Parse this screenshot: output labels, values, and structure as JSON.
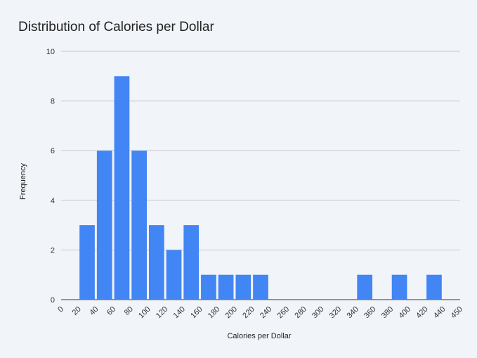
{
  "chart_data": {
    "type": "bar",
    "title": "Distribution of Calories per Dollar",
    "xlabel": "Calories per Dollar",
    "ylabel": "Frequency",
    "ylim": [
      0,
      10
    ],
    "y_ticks": [
      "0",
      "2",
      "4",
      "6",
      "8",
      "10"
    ],
    "x_ticks": [
      "0",
      "20",
      "40",
      "60",
      "80",
      "100",
      "120",
      "140",
      "160",
      "180",
      "200",
      "220",
      "240",
      "260",
      "280",
      "300",
      "320",
      "340",
      "360",
      "380",
      "400",
      "420",
      "440",
      "450"
    ],
    "bins": [
      {
        "x_start": 20,
        "x_end": 40,
        "value": 3
      },
      {
        "x_start": 40,
        "x_end": 60,
        "value": 6
      },
      {
        "x_start": 60,
        "x_end": 80,
        "value": 9
      },
      {
        "x_start": 80,
        "x_end": 100,
        "value": 6
      },
      {
        "x_start": 100,
        "x_end": 120,
        "value": 3
      },
      {
        "x_start": 120,
        "x_end": 140,
        "value": 2
      },
      {
        "x_start": 140,
        "x_end": 160,
        "value": 3
      },
      {
        "x_start": 160,
        "x_end": 180,
        "value": 1
      },
      {
        "x_start": 180,
        "x_end": 200,
        "value": 1
      },
      {
        "x_start": 200,
        "x_end": 220,
        "value": 1
      },
      {
        "x_start": 220,
        "x_end": 240,
        "value": 1
      },
      {
        "x_start": 340,
        "x_end": 360,
        "value": 1
      },
      {
        "x_start": 380,
        "x_end": 400,
        "value": 1
      },
      {
        "x_start": 420,
        "x_end": 440,
        "value": 1
      }
    ],
    "bar_color": "#4285f4",
    "grid": true,
    "legend": "none"
  }
}
